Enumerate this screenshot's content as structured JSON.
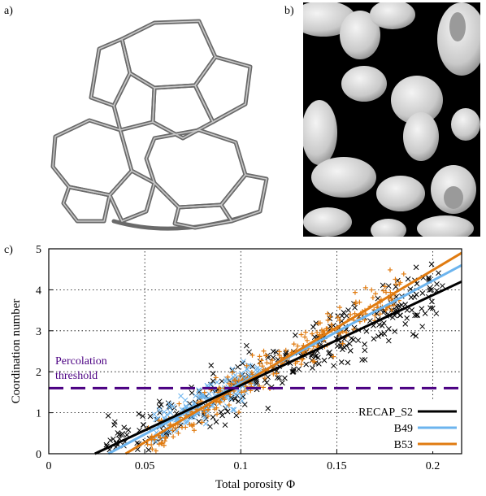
{
  "panels": {
    "a": "a)",
    "b": "b)",
    "c": "c)"
  },
  "chart_data": {
    "type": "scatter",
    "xlabel": "Total porosity Φ",
    "ylabel": "Coordination number",
    "xlim": [
      0,
      0.215
    ],
    "ylim": [
      0,
      5
    ],
    "xticks": [
      "0",
      "0.05",
      "0.1",
      "0.15",
      "0.2"
    ],
    "xtick_values": [
      0,
      0.05,
      0.1,
      0.15,
      0.2
    ],
    "yticks": [
      "0",
      "1",
      "2",
      "3",
      "4",
      "5"
    ],
    "ytick_values": [
      0,
      1,
      2,
      3,
      4,
      5
    ],
    "grid": true,
    "legend_position": "bottom-right",
    "annotation": {
      "text_line1": "Percolation",
      "text_line2": "threshold",
      "y": 1.6,
      "color": "#4b0082"
    },
    "series": [
      {
        "name": "RECAP_S2",
        "color": "#000000",
        "marker": "x",
        "fit": {
          "x1": 0.024,
          "y1": 0,
          "x2": 0.215,
          "y2": 4.2
        }
      },
      {
        "name": "B49",
        "color": "#6cb4ee",
        "marker": "x",
        "fit": {
          "x1": 0.031,
          "y1": 0,
          "x2": 0.215,
          "y2": 4.6
        }
      },
      {
        "name": "B53",
        "color": "#e07b10",
        "marker": "+",
        "fit": {
          "x1": 0.04,
          "y1": 0,
          "x2": 0.215,
          "y2": 4.9
        }
      }
    ]
  }
}
